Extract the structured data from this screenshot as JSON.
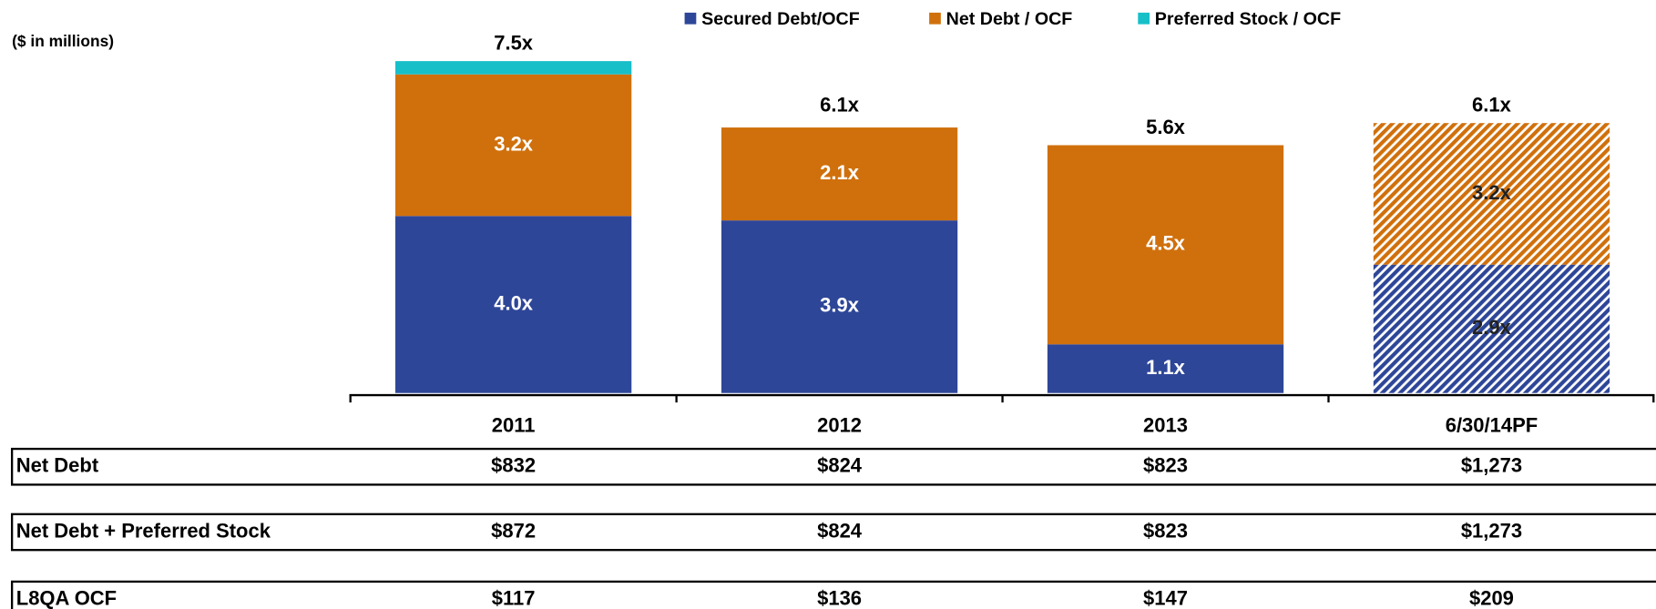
{
  "chart_data": {
    "type": "stacked_bar",
    "subtitle": "($ in millions)",
    "categories": [
      "2011",
      "2012",
      "2013",
      "6/30/14PF"
    ],
    "series": [
      {
        "name": "Secured Debt/OCF",
        "color": "#2e4698",
        "values": [
          4.0,
          3.9,
          1.1,
          2.9
        ],
        "value_labels": [
          "4.0x",
          "3.9x",
          "1.1x",
          "2.9x"
        ]
      },
      {
        "name": "Net Debt / OCF",
        "color": "#d0700c",
        "values": [
          3.2,
          2.1,
          4.5,
          3.2
        ],
        "value_labels": [
          "3.2x",
          "2.1x",
          "4.5x",
          "3.2x"
        ]
      },
      {
        "name": "Preferred Stock / OCF",
        "color": "#17bfc8",
        "values": [
          0.3,
          0,
          0,
          0
        ]
      }
    ],
    "totals": [
      7.5,
      6.1,
      5.6,
      6.1
    ],
    "total_labels": [
      "7.5x",
      "6.1x",
      "5.6x",
      "6.1x"
    ],
    "hatched": [
      false,
      false,
      false,
      true
    ],
    "ylim": [
      0,
      8
    ]
  },
  "table": {
    "rows": [
      [
        "Net Debt",
        "$832",
        "$824",
        "$823",
        "$1,273"
      ],
      [
        "Net Debt + Preferred Stock",
        "$872",
        "$824",
        "$823",
        "$1,273"
      ],
      [
        "L8QA OCF",
        "$117",
        "$136",
        "$147",
        "$209"
      ]
    ]
  }
}
